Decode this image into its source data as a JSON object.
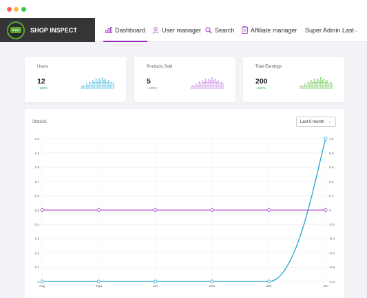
{
  "window": {
    "controls": [
      "close",
      "minimize",
      "maximize"
    ]
  },
  "brand": {
    "name": "SHOP INSPECT",
    "logo_text": "SHOP"
  },
  "nav": {
    "items": [
      {
        "label": "Dashboard",
        "icon": "bar-chart-icon",
        "active": true
      },
      {
        "label": "User manager",
        "icon": "user-icon",
        "active": false
      },
      {
        "label": "Search",
        "icon": "search-icon",
        "active": false
      },
      {
        "label": "Affiliate manager",
        "icon": "clipboard-icon",
        "active": false
      },
      {
        "label": "Super Admin Last",
        "icon": "",
        "active": false
      }
    ],
    "accent": "#9b2bbf"
  },
  "cards": [
    {
      "label": "Users",
      "value": "12",
      "change": "100%",
      "color": "#3bb8e0"
    },
    {
      "label": "Products Sold",
      "value": "5",
      "change": "100%",
      "color": "#c07ee0"
    },
    {
      "label": "Total Earnings",
      "value": "200",
      "change": "100%",
      "color": "#5cc242"
    }
  ],
  "statistic": {
    "title": "Statistic",
    "range_select": "Last 6 month"
  },
  "chart_data": {
    "type": "line",
    "title": "",
    "x": [
      "Aug",
      "Sept",
      "Oct",
      "Nov",
      "Dec",
      "Jan"
    ],
    "ylim": [
      0,
      1.0
    ],
    "yticks_left": [
      "0",
      "0.1",
      "0.2",
      "0.3",
      "0.4",
      "0.5",
      "0.6",
      "0.7",
      "0.8",
      "0.9",
      "1.0"
    ],
    "y2lim": [
      -1.0,
      1.0
    ],
    "yticks_right": [
      "-1.0",
      "-0.8",
      "-0.6",
      "-0.4",
      "-0.2",
      "0",
      "0.2",
      "0.4",
      "0.6",
      "0.8",
      "1.0"
    ],
    "grid": true,
    "series": [
      {
        "values": [
          0,
          0,
          0,
          0,
          0,
          1.0
        ],
        "color": "#1ea1d4",
        "axis": "left"
      },
      {
        "values": [
          0,
          0,
          0,
          0,
          0,
          0
        ],
        "color": "#9b2bbf",
        "axis": "right"
      }
    ]
  }
}
